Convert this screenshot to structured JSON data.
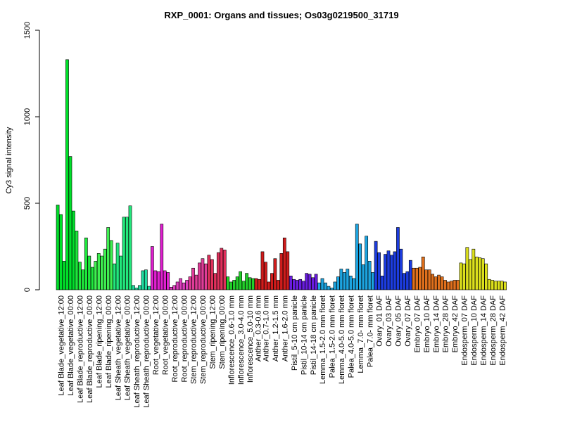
{
  "chart_data": {
    "type": "bar",
    "title": "RXP_0001: Organs and tissues; Os03g0219500_31719",
    "xlabel": "",
    "ylabel": "Cy3 signal intensity",
    "ylim": [
      0,
      1500
    ],
    "yticks": [
      0,
      500,
      1000,
      1500
    ],
    "grid": false,
    "legend": "none",
    "groups": [
      {
        "label": "Leaf Blade_vegetative_12:00",
        "color": "#00e02a",
        "values": [
          490,
          435,
          165
        ]
      },
      {
        "label": "Leaf Blade_vegetative_00:00",
        "color": "#00e02a",
        "values": [
          1330,
          770,
          455
        ]
      },
      {
        "label": "Leaf Blade_reproductive_12:00",
        "color": "#1ee83c",
        "values": [
          340,
          160,
          115
        ]
      },
      {
        "label": "Leaf Blade_reproductive_00:00",
        "color": "#1ee83c",
        "values": [
          300,
          195,
          130
        ]
      },
      {
        "label": "Leaf Blade_ripening_12:00",
        "color": "#3ef050",
        "values": [
          165,
          210,
          195
        ]
      },
      {
        "label": "Leaf Blade_ripening_00:00",
        "color": "#3ef050",
        "values": [
          235,
          360,
          285
        ]
      },
      {
        "label": "Leaf Sheath_vegetative_12:00",
        "color": "#22e87c",
        "values": [
          150,
          270,
          195
        ]
      },
      {
        "label": "Leaf Sheath_vegetative_00:00",
        "color": "#22e87c",
        "values": [
          420,
          420,
          485
        ]
      },
      {
        "label": "Leaf Sheath_reproductive_12:00",
        "color": "#20dca0",
        "values": [
          25,
          10,
          25
        ]
      },
      {
        "label": "Leaf Sheath_reproductive_00:00",
        "color": "#20dca0",
        "values": [
          110,
          115,
          20
        ]
      },
      {
        "label": "Root_vegetative_12:00",
        "color": "#e020d0",
        "values": [
          250,
          110,
          105
        ]
      },
      {
        "label": "Root_vegetative_00:00",
        "color": "#e020d0",
        "values": [
          380,
          110,
          100
        ]
      },
      {
        "label": "Root_reproductive_12:00",
        "color": "#e040c0",
        "values": [
          15,
          25,
          45
        ]
      },
      {
        "label": "Root_reproductive_00:00",
        "color": "#e040c0",
        "values": [
          65,
          40,
          55
        ]
      },
      {
        "label": "Stem_reproductive_12:00",
        "color": "#e03c98",
        "values": [
          75,
          125,
          85
        ]
      },
      {
        "label": "Stem_reproductive_00:00",
        "color": "#e03c98",
        "values": [
          155,
          180,
          150
        ]
      },
      {
        "label": "Stem_ripening_12:00",
        "color": "#e0305c",
        "values": [
          200,
          175,
          95
        ]
      },
      {
        "label": "Stem_ripening_00:00",
        "color": "#e0305c",
        "values": [
          215,
          240,
          230
        ]
      },
      {
        "label": "Inflorescence_0.6-1.0 mm",
        "color": "#22d02a",
        "values": [
          75,
          45,
          55
        ]
      },
      {
        "label": "Inflorescence_3.0-4.0 mm",
        "color": "#22d02a",
        "values": [
          75,
          105,
          50
        ]
      },
      {
        "label": "Inflorescence_5.0-10 mm",
        "color": "#22d02a",
        "values": [
          95,
          70,
          65
        ]
      },
      {
        "label": "Anther_0.3-0.6 mm",
        "color": "#d01c1c",
        "values": [
          65,
          60
        ]
      },
      {
        "label": "Anther_0.7-1.0 mm",
        "color": "#d01c1c",
        "values": [
          220,
          160,
          45
        ]
      },
      {
        "label": "Anther_1.2-1.5 mm",
        "color": "#d01c1c",
        "values": [
          95,
          180,
          55
        ]
      },
      {
        "label": "Anther_1.6-2.0 mm",
        "color": "#d01c1c",
        "values": [
          210,
          300,
          220
        ]
      },
      {
        "label": "Pistil_5-10 cm panicle",
        "color": "#6a1ce0",
        "values": [
          80,
          60,
          55
        ]
      },
      {
        "label": "Pistil_10-14 cm panicle",
        "color": "#6a1ce0",
        "values": [
          60,
          50,
          95
        ]
      },
      {
        "label": "Pistil_14-18 cm panicle",
        "color": "#6a1ce0",
        "values": [
          90,
          70,
          90
        ]
      },
      {
        "label": "Lemma_1.5-2.0 mm floret",
        "color": "#1ca4e0",
        "values": [
          40,
          65,
          40
        ]
      },
      {
        "label": "Palea_1.5-2.0 mm floret",
        "color": "#1ca4e0",
        "values": [
          20,
          10,
          45
        ]
      },
      {
        "label": "Lemma_4.0-5.0 mm floret",
        "color": "#1ca4e0",
        "values": [
          75,
          120,
          100
        ]
      },
      {
        "label": "Palea_4.0-5.0 mm floret",
        "color": "#1ca4e0",
        "values": [
          120,
          80,
          65
        ]
      },
      {
        "label": "Lemma_7.0- mm floret",
        "color": "#1ca4e0",
        "values": [
          380,
          265,
          145
        ]
      },
      {
        "label": "Palea_7.0- mm floret",
        "color": "#1ca4e0",
        "values": [
          310,
          165,
          100
        ]
      },
      {
        "label": "Ovary_01 DAF",
        "color": "#1c3ce0",
        "values": [
          280,
          215,
          80
        ]
      },
      {
        "label": "Ovary_03 DAF",
        "color": "#1c3ce0",
        "values": [
          205,
          225,
          200
        ]
      },
      {
        "label": "Ovary_05 DAF",
        "color": "#1c3ce0",
        "values": [
          220,
          360,
          235
        ]
      },
      {
        "label": "Ovary_07 DAF",
        "color": "#1c3ce0",
        "values": [
          95,
          105,
          170
        ]
      },
      {
        "label": "Embryo_07 DAF",
        "color": "#e0701c",
        "values": [
          125,
          125,
          130
        ]
      },
      {
        "label": "Embryo_10 DAF",
        "color": "#e0701c",
        "values": [
          190,
          115,
          115
        ]
      },
      {
        "label": "Embryo_14 DAF",
        "color": "#e0701c",
        "values": [
          90,
          75,
          85
        ]
      },
      {
        "label": "Embryo_28 DAF",
        "color": "#e0701c",
        "values": [
          75,
          55,
          45
        ]
      },
      {
        "label": "Embryo_42 DAF",
        "color": "#e0701c",
        "values": [
          50,
          55,
          55
        ]
      },
      {
        "label": "Endosperm_07 DAF",
        "color": "#dce01c",
        "values": [
          155,
          150,
          245
        ]
      },
      {
        "label": "Endosperm_10 DAF",
        "color": "#dce01c",
        "values": [
          175,
          235,
          190
        ]
      },
      {
        "label": "Endosperm_14 DAF",
        "color": "#dce01c",
        "values": [
          185,
          180,
          150
        ]
      },
      {
        "label": "Endosperm_28 DAF",
        "color": "#dce01c",
        "values": [
          60,
          55,
          50
        ]
      },
      {
        "label": "Endosperm_42 DAF",
        "color": "#dce01c",
        "values": [
          50,
          50,
          45
        ]
      }
    ]
  }
}
